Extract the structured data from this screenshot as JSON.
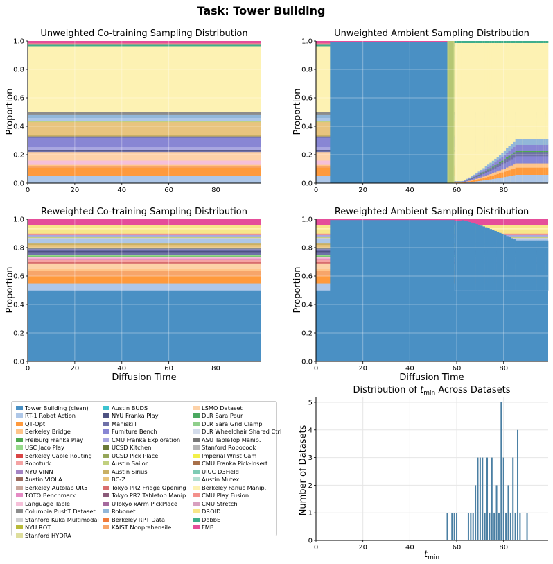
{
  "suptitle": "Task: Tower Building",
  "tick_values": [
    "0",
    "20",
    "40",
    "60",
    "80"
  ],
  "ytick_values": [
    "0.0",
    "0.2",
    "0.4",
    "0.6",
    "0.8",
    "1.0"
  ],
  "datasets": [
    {
      "name": "Tower Building (clean)",
      "color": "#4a90c4"
    },
    {
      "name": "RT-1 Robot Action",
      "color": "#aec7e8"
    },
    {
      "name": "QT-Opt",
      "color": "#ff9a3c"
    },
    {
      "name": "Berkeley Bridge",
      "color": "#ffc58a"
    },
    {
      "name": "Freiburg Franka Play",
      "color": "#4fa84f"
    },
    {
      "name": "USC Jaco Play",
      "color": "#96d98a"
    },
    {
      "name": "Berkeley Cable Routing",
      "color": "#d94545"
    },
    {
      "name": "Roboturk",
      "color": "#f5a3a3"
    },
    {
      "name": "NYU VINN",
      "color": "#a585c4"
    },
    {
      "name": "Austin VIOLA",
      "color": "#9b6b5e"
    },
    {
      "name": "Berkeley Autolab UR5",
      "color": "#c8a79c"
    },
    {
      "name": "TOTO Benchmark",
      "color": "#e58ac4"
    },
    {
      "name": "Language Table",
      "color": "#f6c0d9"
    },
    {
      "name": "Columbia PushT Dataset",
      "color": "#8c8c8c"
    },
    {
      "name": "Stanford Kuka Multimodal",
      "color": "#cfcfcf"
    },
    {
      "name": "NYU ROT",
      "color": "#b8ba3a"
    },
    {
      "name": "Stanford HYDRA",
      "color": "#dede9c"
    },
    {
      "name": "Austin BUDS",
      "color": "#3cc3cf"
    },
    {
      "name": "NYU Franka Play",
      "color": "#4e5282"
    },
    {
      "name": "Maniskill",
      "color": "#6f71a8"
    },
    {
      "name": "Furniture Bench",
      "color": "#8886d4"
    },
    {
      "name": "CMU Franka Exploration",
      "color": "#a9a7e0"
    },
    {
      "name": "UCSD Kitchen",
      "color": "#6b7a37"
    },
    {
      "name": "UCSD Pick Place",
      "color": "#95a65a"
    },
    {
      "name": "Austin Sailor",
      "color": "#c1d07f"
    },
    {
      "name": "Austin Sirius",
      "color": "#c9b064"
    },
    {
      "name": "BC-Z",
      "color": "#e8c47e"
    },
    {
      "name": "Tokyo PR2 Fridge Opening",
      "color": "#d86e6e"
    },
    {
      "name": "Tokyo PR2 Tabletop Manip.",
      "color": "#8a5a79"
    },
    {
      "name": "UTokyo xArm PickPlace",
      "color": "#a56a9e"
    },
    {
      "name": "Robonet",
      "color": "#92b7d9"
    },
    {
      "name": "Berkeley RPT Data",
      "color": "#f07b3a"
    },
    {
      "name": "KAIST Nonprehensile",
      "color": "#f7a56a"
    },
    {
      "name": "LSMO Dataset",
      "color": "#fdd2a8"
    },
    {
      "name": "DLR Sara Pour",
      "color": "#4aa860"
    },
    {
      "name": "DLR Sara Grid Clamp",
      "color": "#8fcf8b"
    },
    {
      "name": "DLR Wheelchair Shared Ctrl",
      "color": "#d3dceb"
    },
    {
      "name": "ASU TableTop Manip.",
      "color": "#777777"
    },
    {
      "name": "Stanford Robocook",
      "color": "#b5b5b5"
    },
    {
      "name": "Imperial Wrist Cam",
      "color": "#f2f04a"
    },
    {
      "name": "CMU Franka Pick-Insert",
      "color": "#a8704a"
    },
    {
      "name": "UIUC D3Field",
      "color": "#7ecbb4"
    },
    {
      "name": "Austin Mutex",
      "color": "#b4dfd2"
    },
    {
      "name": "Berkeley Fanuc Manip.",
      "color": "#fdf2b3"
    },
    {
      "name": "CMU Play Fusion",
      "color": "#f3908b"
    },
    {
      "name": "CMU Stretch",
      "color": "#d8a0bf"
    },
    {
      "name": "DROID",
      "color": "#f8e68a"
    },
    {
      "name": "DobbE",
      "color": "#3fae8c"
    },
    {
      "name": "FMB",
      "color": "#e54e9a"
    }
  ],
  "chart_data": [
    {
      "type": "area",
      "title": "Unweighted Co-training Sampling Distribution",
      "xlabel": "",
      "ylabel": "Proportion",
      "xlim": [
        0,
        99
      ],
      "ylim": [
        0,
        1.0
      ],
      "grid": true,
      "stack_bounds": [
        0,
        0.055,
        0.065,
        0.11,
        0.12,
        0.13,
        0.16,
        0.22,
        0.23,
        0.235,
        0.255,
        0.26,
        0.32,
        0.33,
        0.34,
        0.43,
        0.44,
        0.46,
        0.48,
        0.5,
        0.96,
        0.975,
        0.985,
        1.0
      ],
      "stack_colors": [
        "#aec7e8",
        "#ff9a3c",
        "#ff9a3c",
        "#f7a56a",
        "#ffc58a",
        "#f6c0d9",
        "#fdd2a8",
        "#6f71a8",
        "#4e5282",
        "#a9a7e0",
        "#8886d4",
        "#8886d4",
        "#6f71a8",
        "#c9b064",
        "#e8c47e",
        "#c1d07f",
        "#aec7e8",
        "#92b7d9",
        "#8c8c8c",
        "#fdf2b3",
        "#3fae8c",
        "#f3908b",
        "#e54e9a"
      ]
    },
    {
      "type": "area",
      "title": "Unweighted Ambient Sampling Distribution",
      "xlabel": "",
      "ylabel": "Proportion",
      "xlim": [
        0,
        99
      ],
      "ylim": [
        0,
        1.0
      ],
      "grid": true,
      "clean_start": 6,
      "clean_end": 56,
      "stripe_end": 59,
      "stripe_color": "#c1d07f",
      "stack_bounds": [
        0,
        0.055,
        0.065,
        0.11,
        0.12,
        0.13,
        0.16,
        0.22,
        0.23,
        0.235,
        0.255,
        0.26,
        0.32,
        0.33,
        0.34,
        0.43,
        0.44,
        0.46,
        0.48,
        0.5,
        0.96,
        0.975,
        0.985,
        1.0
      ],
      "stack_colors": [
        "#aec7e8",
        "#ff9a3c",
        "#ff9a3c",
        "#f7a56a",
        "#ffc58a",
        "#f6c0d9",
        "#fdd2a8",
        "#6f71a8",
        "#4e5282",
        "#a9a7e0",
        "#8886d4",
        "#8886d4",
        "#6f71a8",
        "#c9b064",
        "#e8c47e",
        "#c1d07f",
        "#aec7e8",
        "#92b7d9",
        "#8c8c8c",
        "#fdf2b3",
        "#3fae8c",
        "#f3908b",
        "#e54e9a"
      ]
    },
    {
      "type": "area",
      "title": "Reweighted Co-training Sampling Distribution",
      "xlabel": "Diffusion Time",
      "ylabel": "Proportion",
      "xlim": [
        0,
        99
      ],
      "ylim": [
        0,
        1.0
      ],
      "grid": true,
      "stack_bounds": [
        0,
        0.5,
        0.55,
        0.6,
        0.64,
        0.65,
        0.69,
        0.7,
        0.715,
        0.725,
        0.735,
        0.74,
        0.75,
        0.77,
        0.78,
        0.79,
        0.8,
        0.82,
        0.83,
        0.86,
        0.87,
        0.88,
        0.89,
        0.9,
        0.93,
        0.94,
        0.96,
        1.0
      ],
      "stack_colors": [
        "#4a90c4",
        "#aec7e8",
        "#ff9a3c",
        "#f7a56a",
        "#ffc58a",
        "#fdd2a8",
        "#d86e6e",
        "#f5a3a3",
        "#e58ac4",
        "#f6c0d9",
        "#4fa84f",
        "#96d98a",
        "#6f71a8",
        "#4e5282",
        "#8886d4",
        "#8c8c8c",
        "#e8c47e",
        "#c9b064",
        "#aec7e8",
        "#cfcfcf",
        "#c1d07f",
        "#a9a7e0",
        "#f3908b",
        "#f8e68a",
        "#fdf2b3",
        "#f8e68a",
        "#e54e9a"
      ]
    },
    {
      "type": "area",
      "title": "Reweighted Ambient Sampling Distribution",
      "xlabel": "Diffusion Time",
      "ylabel": "Proportion",
      "xlim": [
        0,
        99
      ],
      "ylim": [
        0,
        1.0
      ],
      "grid": true,
      "clean_start": 6,
      "clean_end": 59,
      "stack_bounds": [
        0,
        0.5,
        0.55,
        0.6,
        0.64,
        0.65,
        0.69,
        0.7,
        0.715,
        0.725,
        0.735,
        0.74,
        0.75,
        0.77,
        0.78,
        0.79,
        0.8,
        0.82,
        0.83,
        0.86,
        0.87,
        0.88,
        0.89,
        0.9,
        0.93,
        0.94,
        0.96,
        1.0
      ],
      "stack_colors": [
        "#4a90c4",
        "#aec7e8",
        "#ff9a3c",
        "#f7a56a",
        "#ffc58a",
        "#fdd2a8",
        "#d86e6e",
        "#f5a3a3",
        "#e58ac4",
        "#f6c0d9",
        "#4fa84f",
        "#96d98a",
        "#6f71a8",
        "#4e5282",
        "#8886d4",
        "#8c8c8c",
        "#e8c47e",
        "#c9b064",
        "#aec7e8",
        "#cfcfcf",
        "#c1d07f",
        "#a9a7e0",
        "#f3908b",
        "#f8e68a",
        "#fdf2b3",
        "#f8e68a",
        "#e54e9a"
      ]
    },
    {
      "type": "bar",
      "title": "Distribution of t_min Across Datasets",
      "title_prefix": "Distribution of ",
      "title_var": "t",
      "title_sub": "min",
      "title_suffix": " Across Datasets",
      "xlabel_var": "t",
      "xlabel_sub": "min",
      "ylabel": "Number of Datasets",
      "xlim": [
        0,
        99
      ],
      "ylim": [
        0,
        5.2
      ],
      "grid": true,
      "yticks": [
        "0",
        "1",
        "2",
        "3",
        "4",
        "5"
      ],
      "color": "#4a7fa3",
      "x": [
        56,
        58,
        59,
        60,
        65,
        66,
        67,
        68,
        69,
        70,
        71,
        72,
        73,
        74,
        75,
        76,
        77,
        78,
        79,
        80,
        81,
        82,
        83,
        84,
        85,
        86,
        87,
        90
      ],
      "values": [
        1,
        1,
        1,
        1,
        1,
        1,
        1,
        2,
        3,
        3,
        3,
        1,
        3,
        1,
        3,
        1,
        2,
        1,
        5,
        3,
        1,
        2,
        1,
        3,
        1,
        4,
        1,
        1
      ]
    }
  ]
}
